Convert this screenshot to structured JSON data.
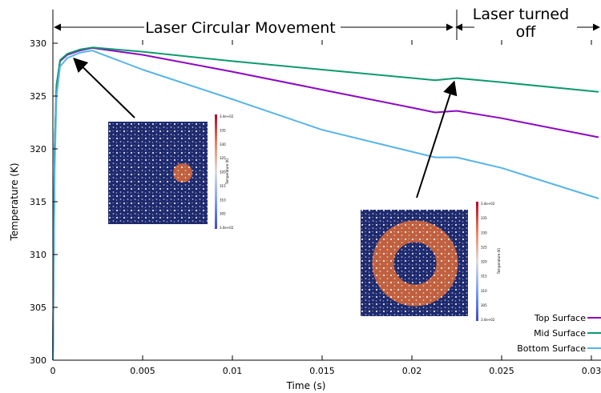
{
  "chart_data": {
    "type": "line",
    "xlabel": "Time (s)",
    "ylabel": "Temperature (K)",
    "xlim": [
      0,
      0.03
    ],
    "ylim": [
      300,
      330
    ],
    "xticks": [
      0,
      0.005,
      0.01,
      0.015,
      0.02,
      0.025,
      0.03
    ],
    "xtick_labels": [
      "0",
      "0.005",
      "0.01",
      "0.015",
      "0.02",
      "0.025",
      "0.03"
    ],
    "yticks": [
      300,
      305,
      310,
      315,
      320,
      325,
      330
    ],
    "legend_position": "bottom-right",
    "series": [
      {
        "name": "Top Surface",
        "color": "#8e06c4",
        "points": [
          [
            0,
            300
          ],
          [
            0.0001,
            320
          ],
          [
            0.0002,
            326
          ],
          [
            0.0004,
            328.3
          ],
          [
            0.0008,
            328.9
          ],
          [
            0.0015,
            329.3
          ],
          [
            0.0022,
            329.55
          ],
          [
            0.005,
            328.9
          ],
          [
            0.01,
            327.3
          ],
          [
            0.015,
            325.6
          ],
          [
            0.02,
            323.9
          ],
          [
            0.0213,
            323.45
          ],
          [
            0.0225,
            323.6
          ],
          [
            0.025,
            322.9
          ],
          [
            0.0304,
            321.1
          ]
        ]
      },
      {
        "name": "Mid Surface",
        "color": "#0c9a6e",
        "points": [
          [
            0,
            300
          ],
          [
            0.0001,
            320
          ],
          [
            0.0002,
            326
          ],
          [
            0.0004,
            328.4
          ],
          [
            0.0008,
            329.0
          ],
          [
            0.0015,
            329.4
          ],
          [
            0.0022,
            329.6
          ],
          [
            0.005,
            329.2
          ],
          [
            0.01,
            328.3
          ],
          [
            0.015,
            327.5
          ],
          [
            0.0213,
            326.5
          ],
          [
            0.0225,
            326.7
          ],
          [
            0.025,
            326.3
          ],
          [
            0.0304,
            325.4
          ]
        ]
      },
      {
        "name": "Bottom Surface",
        "color": "#56b4e9",
        "points": [
          [
            0,
            300
          ],
          [
            0.0001,
            318
          ],
          [
            0.0002,
            325
          ],
          [
            0.0004,
            327.8
          ],
          [
            0.0008,
            328.6
          ],
          [
            0.0015,
            329.1
          ],
          [
            0.0022,
            329.3
          ],
          [
            0.005,
            327.5
          ],
          [
            0.01,
            324.7
          ],
          [
            0.015,
            321.8
          ],
          [
            0.0213,
            319.2
          ],
          [
            0.0225,
            319.2
          ],
          [
            0.025,
            318.2
          ],
          [
            0.0304,
            315.3
          ]
        ]
      }
    ],
    "annotations": {
      "phase1": "Laser Circular Movement",
      "phase2": "Laser turned off",
      "phase_boundary_x": 0.0225,
      "inset_arrow_targets": [
        [
          0.001,
          329.0
        ],
        [
          0.0224,
          326.8
        ]
      ]
    },
    "insets": [
      {
        "colorbar_max": "3.4e+02",
        "colorbar_min": "3.0e+02",
        "colorbar_ticks": [
          "335",
          "330",
          "325",
          "320",
          "315",
          "310",
          "305"
        ],
        "colorbar_label": "Temperature (K)",
        "pattern": "hot spot"
      },
      {
        "colorbar_max": "3.4e+02",
        "colorbar_min": "3.0e+02",
        "colorbar_ticks": [
          "335",
          "330",
          "325",
          "320",
          "315",
          "310",
          "305"
        ],
        "colorbar_label": "Temperature (K)",
        "pattern": "hot ring"
      }
    ]
  }
}
